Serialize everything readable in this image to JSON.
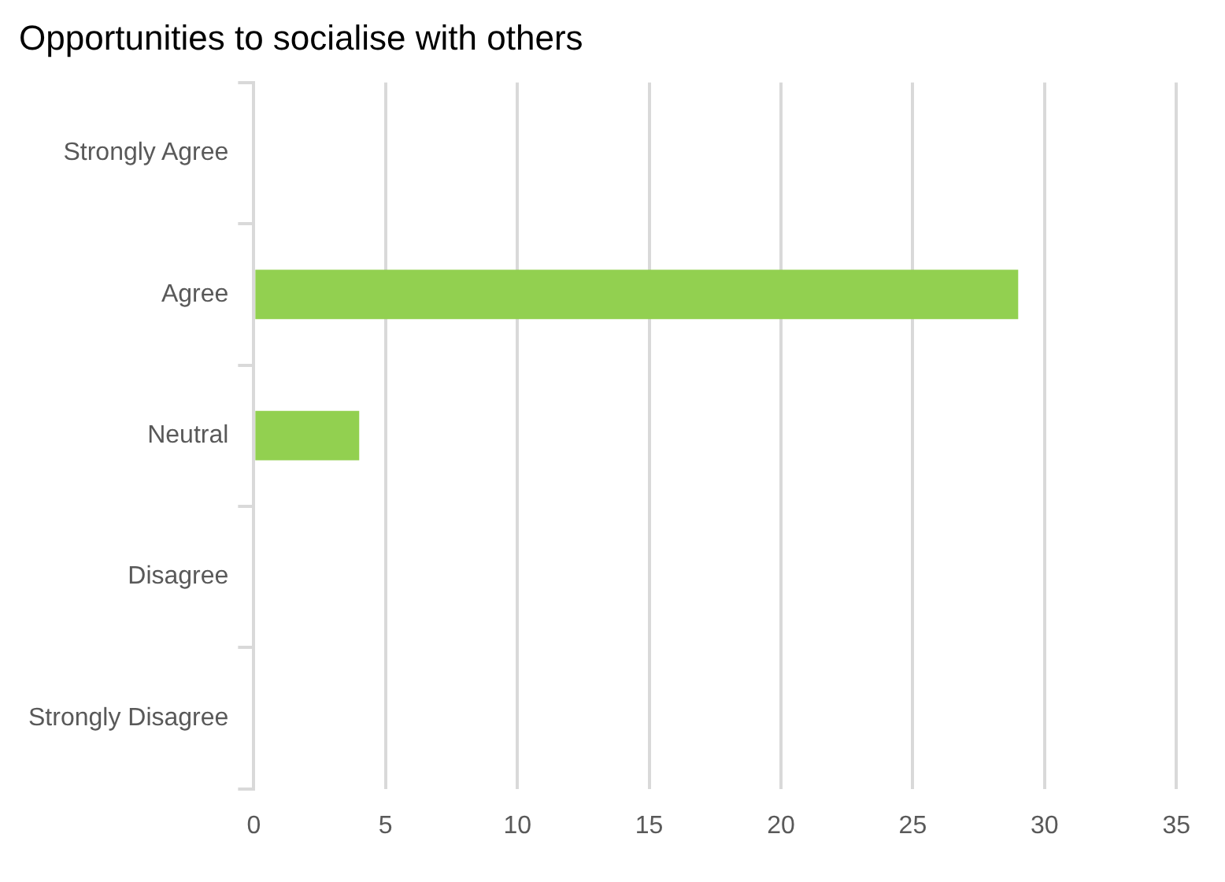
{
  "chart_data": {
    "type": "bar",
    "orientation": "horizontal",
    "title": "Opportunities to socialise with others",
    "categories": [
      "Strongly Agree",
      "Agree",
      "Neutral",
      "Disagree",
      "Strongly Disagree"
    ],
    "values": [
      0,
      29,
      4,
      0,
      0
    ],
    "color": "#92d050",
    "xlim": [
      0,
      35
    ],
    "xticks": [
      0,
      5,
      10,
      15,
      20,
      25,
      30,
      35
    ],
    "grid": "x",
    "legend": false
  }
}
